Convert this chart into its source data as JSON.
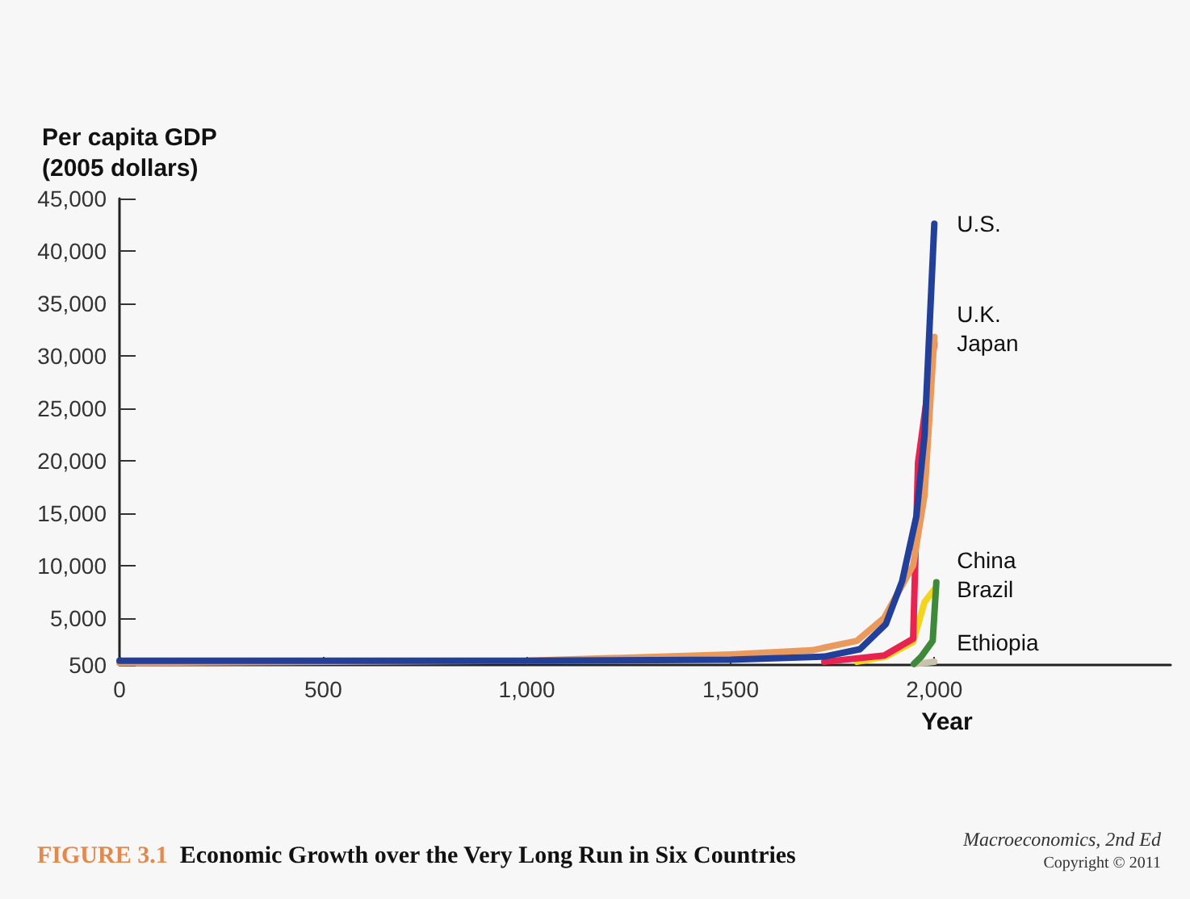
{
  "chart_data": {
    "type": "line",
    "title": "FIGURE 3.1 Economic Growth over the Very Long Run in Six Countries",
    "xlabel": "Year",
    "ylabel": "Per capita GDP\n(2005 dollars)",
    "annotations": [
      "Macroeconomics, 2nd Ed",
      "Copyright © 2011"
    ],
    "xlim": [
      0,
      2580
    ],
    "xticks": [
      0,
      500,
      {
        "value": 1000,
        "label": "1,000"
      },
      {
        "value": 1500,
        "label": "1,500"
      },
      {
        "value": 2000,
        "label": "2,000"
      }
    ],
    "ylim": [
      500,
      45000
    ],
    "yticks": [
      500,
      {
        "value": 5000,
        "label": "5,000"
      },
      {
        "value": 10000,
        "label": "10,000"
      },
      {
        "value": 15000,
        "label": "15,000"
      },
      {
        "value": 20000,
        "label": "20,000"
      },
      {
        "value": 25000,
        "label": "25,000"
      },
      {
        "value": 30000,
        "label": "30,000"
      },
      {
        "value": 35000,
        "label": "35,000"
      },
      {
        "value": 40000,
        "label": "40,000"
      },
      {
        "value": 45000,
        "label": "45,000"
      }
    ],
    "grid": false,
    "legend": false,
    "marker": "none",
    "line_style": "solid",
    "series": [
      {
        "name": "Ethiopia",
        "color": "#c9c2ad",
        "x": [
          1950,
          1975,
          2000
        ],
        "values": [
          600,
          700,
          800
        ]
      },
      {
        "name": "Brazil",
        "color": "#f2d51c",
        "x": [
          1810,
          1881,
          1948,
          1976,
          2000
        ],
        "values": [
          800,
          1300,
          2700,
          6500,
          7700
        ]
      },
      {
        "name": "China",
        "color": "#3f8a3a",
        "x": [
          1950,
          1968,
          1996,
          2005
        ],
        "values": [
          600,
          1300,
          2800,
          8400
        ]
      },
      {
        "name": "Japan",
        "color": "#e8234f",
        "x": [
          1730,
          1877,
          1948,
          1960,
          2000
        ],
        "values": [
          800,
          1400,
          3000,
          19800,
          31200
        ]
      },
      {
        "name": "U.K.",
        "color": "#e99a5c",
        "x": [
          0,
          1000,
          1500,
          1700,
          1810,
          1877,
          1948,
          1976,
          2000
        ],
        "values": [
          700,
          900,
          1500,
          1900,
          2800,
          5000,
          10000,
          16700,
          31800
        ]
      },
      {
        "name": "U.S.",
        "color": "#22409a",
        "x": [
          0,
          1000,
          1500,
          1730,
          1817,
          1881,
          1921,
          1956,
          1976,
          2000
        ],
        "values": [
          900,
          900,
          1000,
          1300,
          2000,
          4400,
          8500,
          14700,
          22400,
          42600
        ]
      }
    ]
  }
}
